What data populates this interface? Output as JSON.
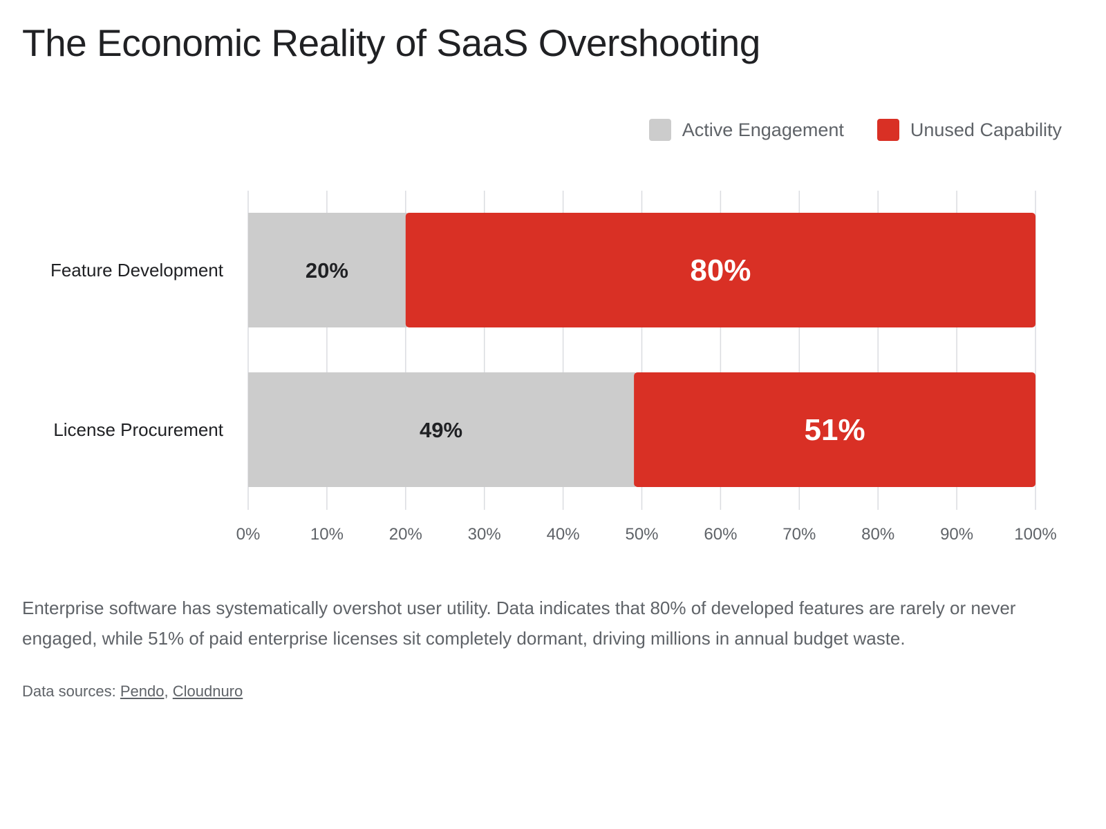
{
  "title": "The Economic Reality of SaaS Overshooting",
  "colors": {
    "active": "#cccccc",
    "unused": "#d93025",
    "grid": "#dadce0",
    "tick_text": "#5f6368",
    "category_text": "#202124",
    "label_dark": "#202124",
    "label_light": "#ffffff"
  },
  "legend": [
    {
      "label": "Active Engagement",
      "color": "#cccccc"
    },
    {
      "label": "Unused Capability",
      "color": "#d93025"
    }
  ],
  "chart_data": {
    "type": "bar",
    "orientation": "horizontal",
    "stacked": true,
    "categories": [
      "Feature Development",
      "License Procurement"
    ],
    "series": [
      {
        "name": "Active Engagement",
        "values": [
          20,
          49
        ],
        "labels": [
          "20%",
          "49%"
        ]
      },
      {
        "name": "Unused Capability",
        "values": [
          80,
          51
        ],
        "labels": [
          "80%",
          "51%"
        ]
      }
    ],
    "xlim": [
      0,
      100
    ],
    "xticks": [
      0,
      10,
      20,
      30,
      40,
      50,
      60,
      70,
      80,
      90,
      100
    ],
    "xtick_labels": [
      "0%",
      "10%",
      "20%",
      "30%",
      "40%",
      "50%",
      "60%",
      "70%",
      "80%",
      "90%",
      "100%"
    ],
    "grid": true,
    "legend_position": "top-right"
  },
  "description": "Enterprise software has systematically overshot user utility. Data indicates that 80% of developed features are rarely or never engaged, while 51% of paid enterprise licenses sit completely dormant, driving millions in annual budget waste.",
  "sources": {
    "prefix": "Data sources:",
    "links": [
      "Pendo",
      "Cloudnuro"
    ],
    "separator": ","
  }
}
